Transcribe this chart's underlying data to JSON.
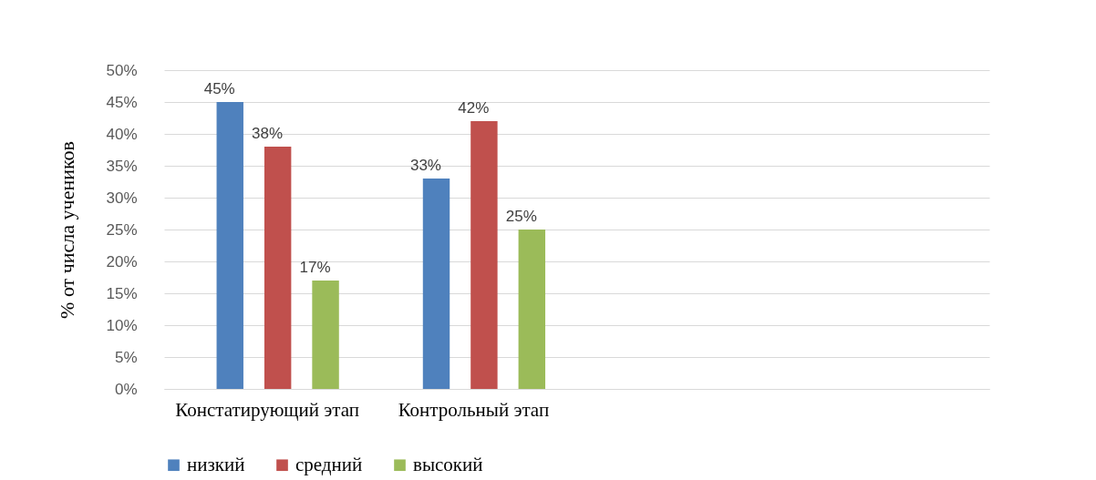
{
  "chart_data": {
    "type": "bar",
    "ylabel": "% от числа учеников",
    "categories": [
      "Констатирующий этап",
      "Контрольный этап",
      null,
      null
    ],
    "series": [
      {
        "name": "низкий",
        "color": "#4f81bd",
        "values": [
          45,
          33,
          null,
          null
        ],
        "value_labels": [
          "45%",
          "33%",
          null,
          null
        ]
      },
      {
        "name": "средний",
        "color": "#c0504d",
        "values": [
          38,
          42,
          null,
          null
        ],
        "value_labels": [
          "38%",
          "42%",
          null,
          null
        ]
      },
      {
        "name": "высокий",
        "color": "#9bbb59",
        "values": [
          17,
          25,
          null,
          null
        ],
        "value_labels": [
          "17%",
          "25%",
          null,
          null
        ]
      }
    ],
    "ylim": [
      0,
      50
    ],
    "yticks": [
      {
        "value": 0,
        "label": "0%"
      },
      {
        "value": 5,
        "label": "5%"
      },
      {
        "value": 10,
        "label": "10%"
      },
      {
        "value": 15,
        "label": "15%"
      },
      {
        "value": 20,
        "label": "20%"
      },
      {
        "value": 25,
        "label": "25%"
      },
      {
        "value": 30,
        "label": "30%"
      },
      {
        "value": 35,
        "label": "35%"
      },
      {
        "value": 40,
        "label": "40%"
      },
      {
        "value": 45,
        "label": "45%"
      },
      {
        "value": 50,
        "label": "50%"
      }
    ],
    "grid": "y",
    "legend": "bottom"
  }
}
